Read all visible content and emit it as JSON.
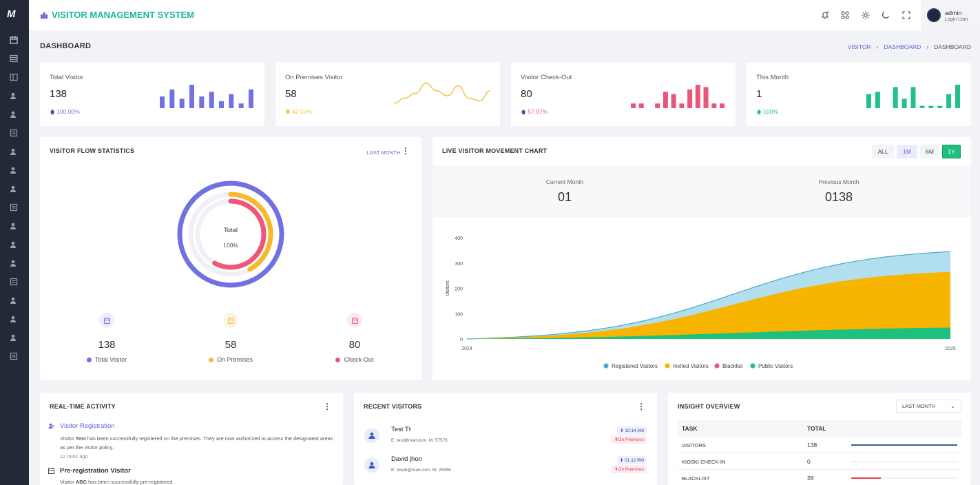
{
  "sidebar": {
    "logo": "M",
    "icons": [
      "calendar-icon",
      "list-icon",
      "layout-icon",
      "user-icon",
      "chart-icon",
      "table-icon",
      "user-badge-icon",
      "chat-icon",
      "person-icon",
      "users-icon",
      "book-icon",
      "document-icon",
      "checklist-icon",
      "files-icon",
      "user-plus-icon",
      "report-icon",
      "message-icon",
      "mail-check-icon"
    ]
  },
  "header": {
    "title": "VISITOR MANAGEMENT SYSTEM",
    "user_name": "admin",
    "user_role": "Login User"
  },
  "page": {
    "title": "DASHBOARD",
    "breadcrumb": [
      "VISITOR",
      "DASHBOARD",
      "DASHBOARD"
    ]
  },
  "stats": [
    {
      "label": "Total Visitor",
      "value": "138",
      "delta": "100.00%",
      "delta_dir": "up",
      "color": "#6f72e0",
      "spark": [
        5,
        8,
        4,
        10,
        5,
        7,
        3,
        6,
        2,
        8
      ]
    },
    {
      "label": "On Premises Visitor",
      "value": "58",
      "delta": "42.03%",
      "delta_dir": "down",
      "color": "#f4c54a",
      "spark": [
        2,
        4,
        6,
        10,
        7,
        5,
        9,
        4,
        3,
        7
      ]
    },
    {
      "label": "Visitor Check-Out",
      "value": "80",
      "delta": "57.97%",
      "delta_dir": "up",
      "color": "#e8577a",
      "spark": [
        2,
        2,
        0,
        2,
        7,
        6,
        2,
        8,
        10,
        9,
        2,
        2
      ]
    },
    {
      "label": "This Month",
      "value": "1",
      "delta": "100%",
      "delta_dir": "up",
      "color": "#22c08a",
      "spark": [
        6,
        7,
        0,
        9,
        4,
        9,
        1,
        1,
        1,
        6,
        10
      ]
    }
  ],
  "flow": {
    "title": "VISITOR FLOW STATISTICS",
    "filter": "LAST MONTH",
    "center_label": "Total",
    "center_value": "100%",
    "rings": [
      {
        "name": "Total Visitor",
        "fraction": 1.0,
        "color": "#6f72e0"
      },
      {
        "name": "On Premises",
        "fraction": 0.42,
        "color": "#f6b92b"
      },
      {
        "name": "Check-Out",
        "fraction": 0.58,
        "color": "#ee5878"
      }
    ],
    "items": [
      {
        "value": "138",
        "label": "Total Visitor",
        "color": "#6f72e0",
        "bg": "#eeeefc",
        "icon": "users-icon"
      },
      {
        "value": "58",
        "label": "On Premises",
        "color": "#f4b942",
        "bg": "#fdf5e3",
        "icon": "calendar-icon"
      },
      {
        "value": "80",
        "label": "Check-Out",
        "color": "#e8577a",
        "bg": "#fde8ee",
        "icon": "calendar-clock-icon"
      }
    ]
  },
  "movement": {
    "title": "LIVE VISITOR MOVEMENT CHART",
    "ranges": [
      "ALL",
      "1M",
      "6M",
      "1Y"
    ],
    "active_range": "1Y",
    "current_label": "Current Month",
    "current_value": "01",
    "previous_label": "Previous Month",
    "previous_value": "0138"
  },
  "chart_data": {
    "type": "area",
    "x": [
      "2024",
      "2025"
    ],
    "ylabel": "Visitors",
    "ylim": [
      0,
      400
    ],
    "yticks": [
      0,
      100,
      200,
      300,
      400
    ],
    "series": [
      {
        "name": "Registered Visitors",
        "color": "#4aa8cc",
        "fill": "#b2dfee",
        "start": 0,
        "end": 345
      },
      {
        "name": "Invited Visitors",
        "color": "#f7b500",
        "fill": "#f7b500",
        "start": 0,
        "end": 265
      },
      {
        "name": "Blacklist",
        "color": "#e8577a",
        "fill": "#e8577a",
        "start": 0,
        "end": 0
      },
      {
        "name": "Public Visitors",
        "color": "#1ec07d",
        "fill": "#1ec07d",
        "start": 0,
        "end": 45
      }
    ]
  },
  "activity": {
    "title": "REAL-TIME ACTIVITY",
    "items": [
      {
        "title": "Visitor Registration",
        "text_pre": "Visitor ",
        "name": "Test",
        "text_post": " has been successfully registered on the premises. They are now authorized to access the designated areas as per the visitor policy.",
        "time": "12 mins ago"
      },
      {
        "title": "Pre-registration Visitor",
        "text_pre": "Visitor ",
        "name": "ABC",
        "text_post": " has been successfully pre-registered",
        "time": ""
      }
    ]
  },
  "recent": {
    "title": "RECENT VISITORS",
    "items": [
      {
        "name": "Test Tt",
        "detail": "E: test@mail.com,  M: 57578",
        "time": "10:14 AM",
        "status": "On Premises"
      },
      {
        "name": "David jhon",
        "detail": "E: david@mail.com,  M: 25556",
        "time": "01:12 PM",
        "status": "On Premises"
      }
    ]
  },
  "insight": {
    "title": "INSIGHT OVERVIEW",
    "filter": "LAST MONTH",
    "col_task": "TASK",
    "col_total": "TOTAL",
    "rows": [
      {
        "task": "VISITORS",
        "total": "138",
        "bar": 1.0,
        "color": "#3f5a9a"
      },
      {
        "task": "KIOSKI CHECK-IN",
        "total": "0",
        "bar": 0,
        "color": "#3f5a9a"
      },
      {
        "task": "BLACKLIST",
        "total": "28",
        "bar": 0.28,
        "color": "#e8404a"
      }
    ]
  }
}
